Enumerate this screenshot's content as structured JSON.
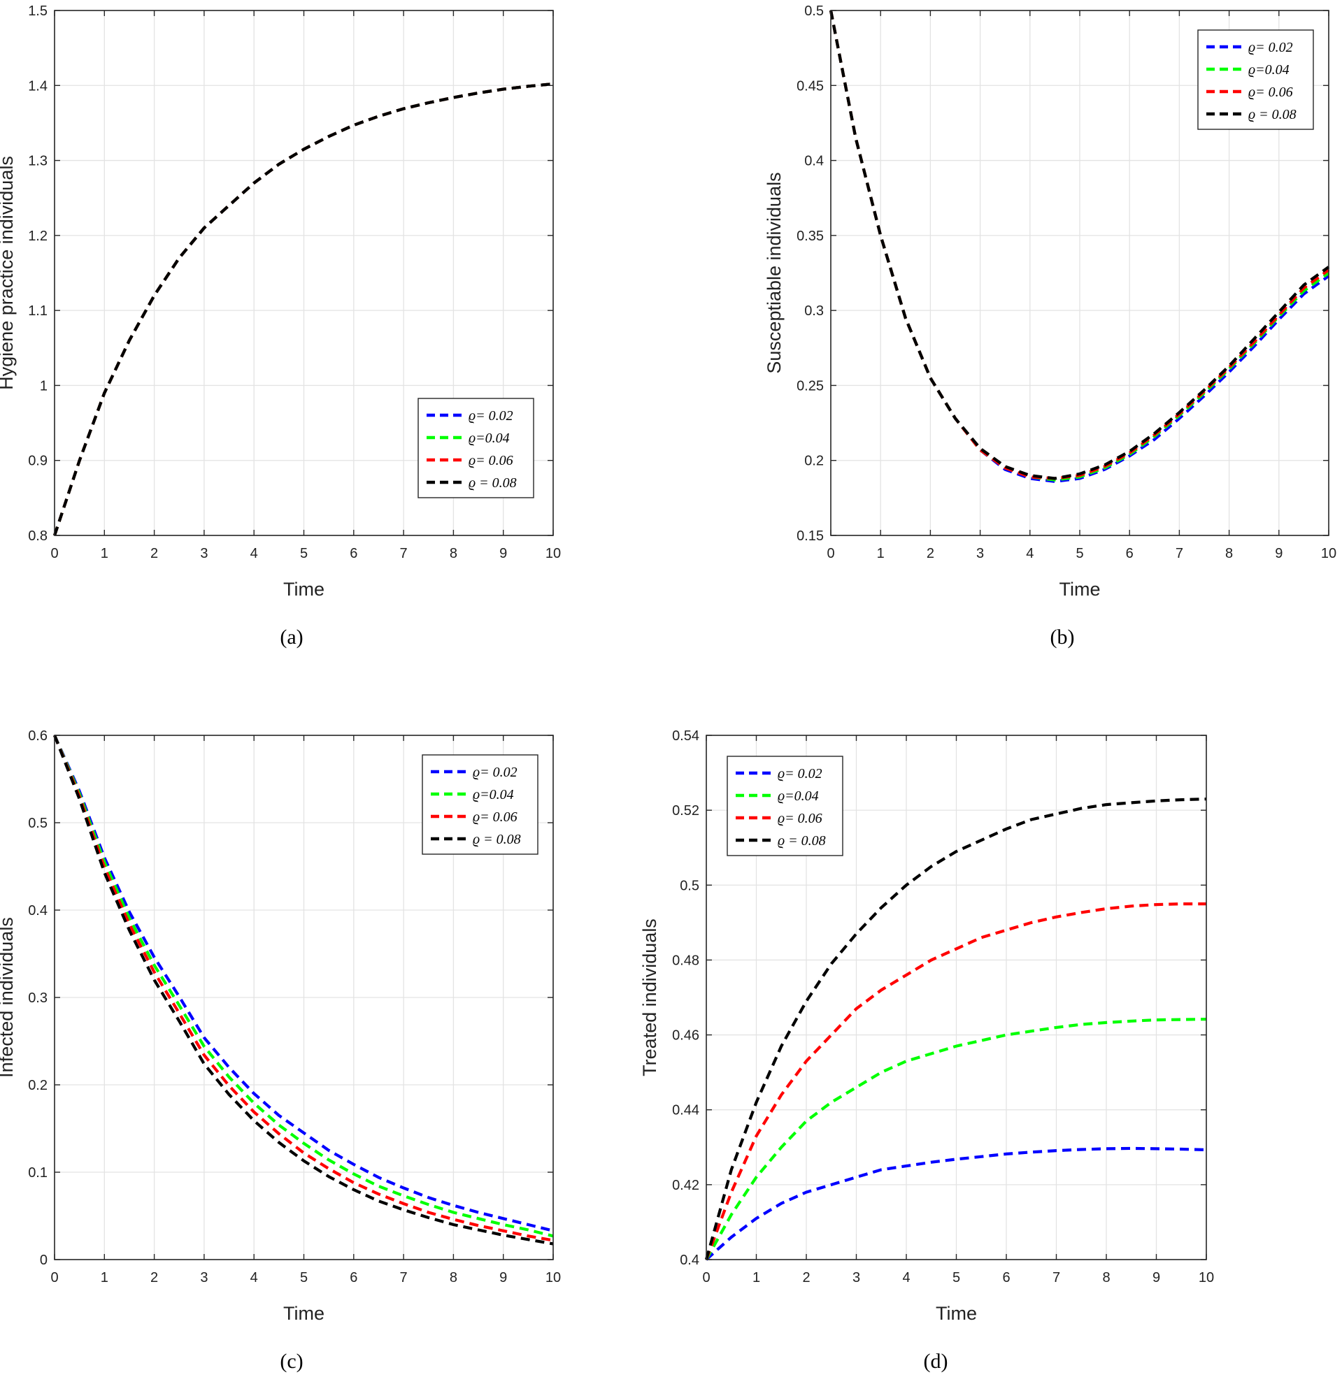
{
  "chart_data": [
    {
      "id": "a",
      "type": "line",
      "caption": "(a)",
      "xlabel": "Time",
      "ylabel": "Hygiene practice individuals",
      "xlim": [
        0,
        10
      ],
      "ylim": [
        0.8,
        1.5
      ],
      "xticks": [
        "0",
        "1",
        "2",
        "3",
        "4",
        "5",
        "6",
        "7",
        "8",
        "9",
        "10"
      ],
      "yticks": [
        "0.8",
        "0.9",
        "1",
        "1.1",
        "1.2",
        "1.3",
        "1.4",
        "1.5"
      ],
      "legend_position": "lower-right",
      "series": [
        {
          "name": "ϱ= 0.02",
          "color": "#0000ff",
          "x": [
            0,
            0.5,
            1,
            1.5,
            2,
            2.5,
            3,
            3.5,
            4,
            4.5,
            5,
            5.5,
            6,
            6.5,
            7,
            7.5,
            8,
            8.5,
            9,
            9.5,
            10
          ],
          "y": [
            0.8,
            0.9,
            0.99,
            1.06,
            1.12,
            1.17,
            1.21,
            1.24,
            1.27,
            1.295,
            1.315,
            1.332,
            1.347,
            1.359,
            1.369,
            1.377,
            1.384,
            1.39,
            1.395,
            1.399,
            1.402
          ]
        },
        {
          "name": "ϱ=0.04",
          "color": "#00ff00",
          "x": [
            0,
            0.5,
            1,
            1.5,
            2,
            2.5,
            3,
            3.5,
            4,
            4.5,
            5,
            5.5,
            6,
            6.5,
            7,
            7.5,
            8,
            8.5,
            9,
            9.5,
            10
          ],
          "y": [
            0.8,
            0.9,
            0.99,
            1.06,
            1.12,
            1.17,
            1.21,
            1.24,
            1.27,
            1.295,
            1.315,
            1.332,
            1.347,
            1.359,
            1.369,
            1.377,
            1.384,
            1.39,
            1.395,
            1.399,
            1.402
          ]
        },
        {
          "name": "ϱ= 0.06",
          "color": "#ff0000",
          "x": [
            0,
            0.5,
            1,
            1.5,
            2,
            2.5,
            3,
            3.5,
            4,
            4.5,
            5,
            5.5,
            6,
            6.5,
            7,
            7.5,
            8,
            8.5,
            9,
            9.5,
            10
          ],
          "y": [
            0.8,
            0.9,
            0.99,
            1.06,
            1.12,
            1.17,
            1.21,
            1.24,
            1.27,
            1.295,
            1.315,
            1.332,
            1.347,
            1.359,
            1.369,
            1.377,
            1.384,
            1.39,
            1.395,
            1.399,
            1.402
          ]
        },
        {
          "name": "ϱ = 0.08",
          "color": "#000000",
          "x": [
            0,
            0.5,
            1,
            1.5,
            2,
            2.5,
            3,
            3.5,
            4,
            4.5,
            5,
            5.5,
            6,
            6.5,
            7,
            7.5,
            8,
            8.5,
            9,
            9.5,
            10
          ],
          "y": [
            0.8,
            0.9,
            0.99,
            1.06,
            1.12,
            1.17,
            1.21,
            1.24,
            1.27,
            1.295,
            1.315,
            1.332,
            1.347,
            1.359,
            1.369,
            1.377,
            1.384,
            1.39,
            1.395,
            1.399,
            1.402
          ]
        }
      ]
    },
    {
      "id": "b",
      "type": "line",
      "caption": "(b)",
      "xlabel": "Time",
      "ylabel": "Susceptiable individuals",
      "xlim": [
        0,
        10
      ],
      "ylim": [
        0.15,
        0.5
      ],
      "xticks": [
        "0",
        "1",
        "2",
        "3",
        "4",
        "5",
        "6",
        "7",
        "8",
        "9",
        "10"
      ],
      "yticks": [
        "0.15",
        "0.2",
        "0.25",
        "0.3",
        "0.35",
        "0.4",
        "0.45",
        "0.5"
      ],
      "legend_position": "top-right",
      "series": [
        {
          "name": "ϱ= 0.02",
          "color": "#0000ff",
          "x": [
            0,
            0.5,
            1,
            1.5,
            2,
            2.5,
            3,
            3.5,
            4,
            4.5,
            5,
            5.5,
            6,
            6.5,
            7,
            7.5,
            8,
            8.5,
            9,
            9.5,
            10
          ],
          "y": [
            0.5,
            0.415,
            0.35,
            0.295,
            0.255,
            0.228,
            0.207,
            0.194,
            0.188,
            0.186,
            0.188,
            0.194,
            0.203,
            0.214,
            0.228,
            0.243,
            0.259,
            0.276,
            0.294,
            0.311,
            0.323
          ]
        },
        {
          "name": "ϱ=0.04",
          "color": "#00ff00",
          "x": [
            0,
            0.5,
            1,
            1.5,
            2,
            2.5,
            3,
            3.5,
            4,
            4.5,
            5,
            5.5,
            6,
            6.5,
            7,
            7.5,
            8,
            8.5,
            9,
            9.5,
            10
          ],
          "y": [
            0.5,
            0.415,
            0.35,
            0.295,
            0.255,
            0.228,
            0.207,
            0.195,
            0.189,
            0.187,
            0.189,
            0.195,
            0.204,
            0.216,
            0.23,
            0.245,
            0.261,
            0.278,
            0.296,
            0.313,
            0.325
          ]
        },
        {
          "name": "ϱ= 0.06",
          "color": "#ff0000",
          "x": [
            0,
            0.5,
            1,
            1.5,
            2,
            2.5,
            3,
            3.5,
            4,
            4.5,
            5,
            5.5,
            6,
            6.5,
            7,
            7.5,
            8,
            8.5,
            9,
            9.5,
            10
          ],
          "y": [
            0.5,
            0.415,
            0.35,
            0.295,
            0.255,
            0.228,
            0.207,
            0.195,
            0.189,
            0.188,
            0.19,
            0.196,
            0.205,
            0.217,
            0.231,
            0.246,
            0.262,
            0.279,
            0.297,
            0.315,
            0.327
          ]
        },
        {
          "name": "ϱ = 0.08",
          "color": "#000000",
          "x": [
            0,
            0.5,
            1,
            1.5,
            2,
            2.5,
            3,
            3.5,
            4,
            4.5,
            5,
            5.5,
            6,
            6.5,
            7,
            7.5,
            8,
            8.5,
            9,
            9.5,
            10
          ],
          "y": [
            0.5,
            0.415,
            0.35,
            0.295,
            0.255,
            0.228,
            0.208,
            0.196,
            0.19,
            0.188,
            0.191,
            0.197,
            0.206,
            0.218,
            0.232,
            0.247,
            0.263,
            0.281,
            0.299,
            0.317,
            0.329
          ]
        }
      ]
    },
    {
      "id": "c",
      "type": "line",
      "caption": "(c)",
      "xlabel": "Time",
      "ylabel": "Infected individuals",
      "xlim": [
        0,
        10
      ],
      "ylim": [
        0,
        0.6
      ],
      "xticks": [
        "0",
        "1",
        "2",
        "3",
        "4",
        "5",
        "6",
        "7",
        "8",
        "9",
        "10"
      ],
      "yticks": [
        "0",
        "0.1",
        "0.2",
        "0.3",
        "0.4",
        "0.5",
        "0.6"
      ],
      "legend_position": "top-right",
      "series": [
        {
          "name": "ϱ= 0.02",
          "color": "#0000ff",
          "x": [
            0,
            0.5,
            1,
            1.5,
            2,
            2.5,
            3,
            3.5,
            4,
            4.5,
            5,
            5.5,
            6,
            6.5,
            7,
            7.5,
            8,
            8.5,
            9,
            9.5,
            10
          ],
          "y": [
            0.6,
            0.536,
            0.46,
            0.398,
            0.346,
            0.301,
            0.254,
            0.22,
            0.19,
            0.165,
            0.145,
            0.125,
            0.109,
            0.094,
            0.082,
            0.071,
            0.062,
            0.054,
            0.047,
            0.04,
            0.033
          ]
        },
        {
          "name": "ϱ=0.04",
          "color": "#00ff00",
          "x": [
            0,
            0.5,
            1,
            1.5,
            2,
            2.5,
            3,
            3.5,
            4,
            4.5,
            5,
            5.5,
            6,
            6.5,
            7,
            7.5,
            8,
            8.5,
            9,
            9.5,
            10
          ],
          "y": [
            0.6,
            0.533,
            0.455,
            0.391,
            0.337,
            0.291,
            0.244,
            0.209,
            0.179,
            0.154,
            0.133,
            0.114,
            0.098,
            0.084,
            0.073,
            0.063,
            0.054,
            0.047,
            0.04,
            0.034,
            0.027
          ]
        },
        {
          "name": "ϱ= 0.06",
          "color": "#ff0000",
          "x": [
            0,
            0.5,
            1,
            1.5,
            2,
            2.5,
            3,
            3.5,
            4,
            4.5,
            5,
            5.5,
            6,
            6.5,
            7,
            7.5,
            8,
            8.5,
            9,
            9.5,
            10
          ],
          "y": [
            0.6,
            0.53,
            0.449,
            0.384,
            0.329,
            0.282,
            0.234,
            0.199,
            0.169,
            0.144,
            0.122,
            0.104,
            0.088,
            0.075,
            0.064,
            0.054,
            0.046,
            0.039,
            0.033,
            0.027,
            0.022
          ]
        },
        {
          "name": "ϱ = 0.08",
          "color": "#000000",
          "x": [
            0,
            0.5,
            1,
            1.5,
            2,
            2.5,
            3,
            3.5,
            4,
            4.5,
            5,
            5.5,
            6,
            6.5,
            7,
            7.5,
            8,
            8.5,
            9,
            9.5,
            10
          ],
          "y": [
            0.6,
            0.527,
            0.443,
            0.377,
            0.32,
            0.273,
            0.224,
            0.189,
            0.159,
            0.134,
            0.113,
            0.095,
            0.08,
            0.067,
            0.057,
            0.048,
            0.04,
            0.034,
            0.028,
            0.023,
            0.018
          ]
        }
      ]
    },
    {
      "id": "d",
      "type": "line",
      "caption": "(d)",
      "xlabel": "Time",
      "ylabel": "Treated individuals",
      "xlim": [
        0,
        10
      ],
      "ylim": [
        0.4,
        0.54
      ],
      "xticks": [
        "0",
        "1",
        "2",
        "3",
        "4",
        "5",
        "6",
        "7",
        "8",
        "9",
        "10"
      ],
      "yticks": [
        "0.4",
        "0.42",
        "0.44",
        "0.46",
        "0.48",
        "0.5",
        "0.52",
        "0.54"
      ],
      "legend_position": "top-left",
      "series": [
        {
          "name": "ϱ= 0.02",
          "color": "#0000ff",
          "x": [
            0,
            0.5,
            1,
            1.5,
            2,
            2.5,
            3,
            3.5,
            4,
            4.5,
            5,
            5.5,
            6,
            6.5,
            7,
            7.5,
            8,
            8.5,
            9,
            9.5,
            10
          ],
          "y": [
            0.4,
            0.406,
            0.411,
            0.415,
            0.418,
            0.42,
            0.422,
            0.424,
            0.425,
            0.426,
            0.4268,
            0.4275,
            0.4282,
            0.4287,
            0.4291,
            0.4294,
            0.4296,
            0.4297,
            0.4296,
            0.4295,
            0.4293
          ]
        },
        {
          "name": "ϱ=0.04",
          "color": "#00ff00",
          "x": [
            0,
            0.5,
            1,
            1.5,
            2,
            2.5,
            3,
            3.5,
            4,
            4.5,
            5,
            5.5,
            6,
            6.5,
            7,
            7.5,
            8,
            8.5,
            9,
            9.5,
            10
          ],
          "y": [
            0.4,
            0.412,
            0.422,
            0.43,
            0.437,
            0.442,
            0.446,
            0.45,
            0.453,
            0.455,
            0.457,
            0.4585,
            0.46,
            0.461,
            0.462,
            0.4628,
            0.4633,
            0.4637,
            0.464,
            0.4641,
            0.4642
          ]
        },
        {
          "name": "ϱ= 0.06",
          "color": "#ff0000",
          "x": [
            0,
            0.5,
            1,
            1.5,
            2,
            2.5,
            3,
            3.5,
            4,
            4.5,
            5,
            5.5,
            6,
            6.5,
            7,
            7.5,
            8,
            8.5,
            9,
            9.5,
            10
          ],
          "y": [
            0.4,
            0.418,
            0.433,
            0.444,
            0.453,
            0.46,
            0.467,
            0.472,
            0.476,
            0.48,
            0.483,
            0.486,
            0.488,
            0.49,
            0.4915,
            0.4927,
            0.4937,
            0.4944,
            0.4948,
            0.495,
            0.495
          ]
        },
        {
          "name": "ϱ = 0.08",
          "color": "#000000",
          "x": [
            0,
            0.5,
            1,
            1.5,
            2,
            2.5,
            3,
            3.5,
            4,
            4.5,
            5,
            5.5,
            6,
            6.5,
            7,
            7.5,
            8,
            8.5,
            9,
            9.5,
            10
          ],
          "y": [
            0.4,
            0.424,
            0.442,
            0.457,
            0.469,
            0.479,
            0.487,
            0.494,
            0.5,
            0.505,
            0.509,
            0.512,
            0.515,
            0.5175,
            0.519,
            0.5205,
            0.5215,
            0.522,
            0.5225,
            0.5228,
            0.523
          ]
        }
      ]
    }
  ]
}
